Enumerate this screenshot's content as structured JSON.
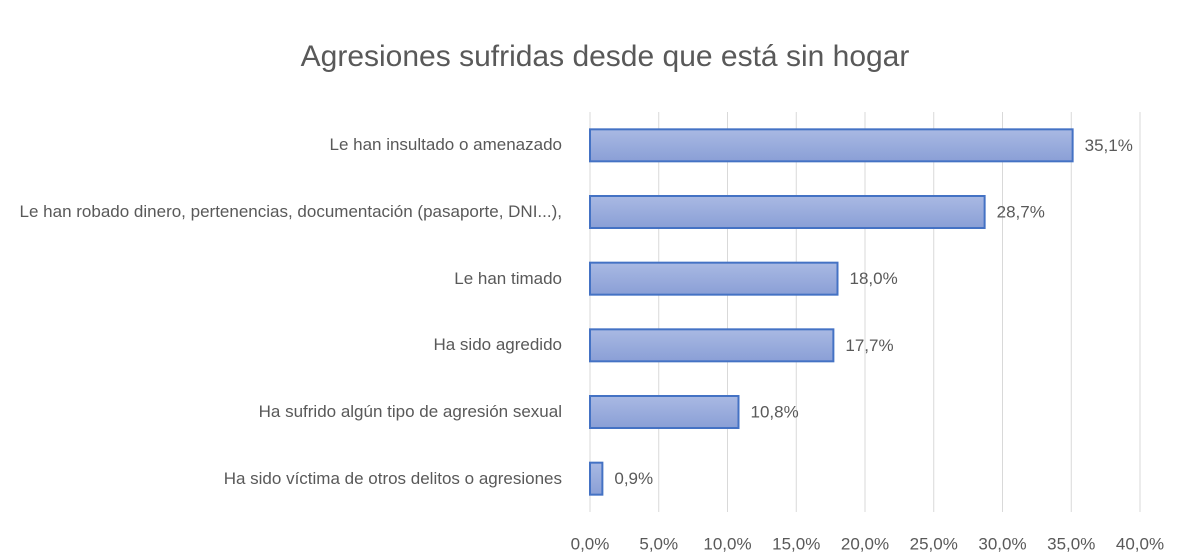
{
  "chart_data": {
    "type": "barh",
    "title": "Agresiones sufridas desde que está sin hogar",
    "categories": [
      "Le han insultado o amenazado",
      "Le han robado dinero, pertenencias, documentación (pasaporte, DNI...),",
      "Le han timado",
      "Ha sido agredido",
      "Ha sufrido algún tipo de agresión sexual",
      "Ha sido víctima de otros delitos o agresiones"
    ],
    "values": [
      35.1,
      28.7,
      18.0,
      17.7,
      10.8,
      0.9
    ],
    "value_labels": [
      "35,1%",
      "28,7%",
      "18,0%",
      "17,7%",
      "10,8%",
      "0,9%"
    ],
    "color": "#4472c4",
    "xlim": [
      0,
      40
    ],
    "xticks": [
      {
        "value": 0,
        "label": "0,0%"
      },
      {
        "value": 5,
        "label": "5,0%"
      },
      {
        "value": 10,
        "label": "10,0%"
      },
      {
        "value": 15,
        "label": "15,0%"
      },
      {
        "value": 20,
        "label": "20,0%"
      },
      {
        "value": 25,
        "label": "25,0%"
      },
      {
        "value": 30,
        "label": "30,0%"
      },
      {
        "value": 35,
        "label": "35,0%"
      },
      {
        "value": 40,
        "label": "40,0%"
      }
    ],
    "grid": true
  }
}
